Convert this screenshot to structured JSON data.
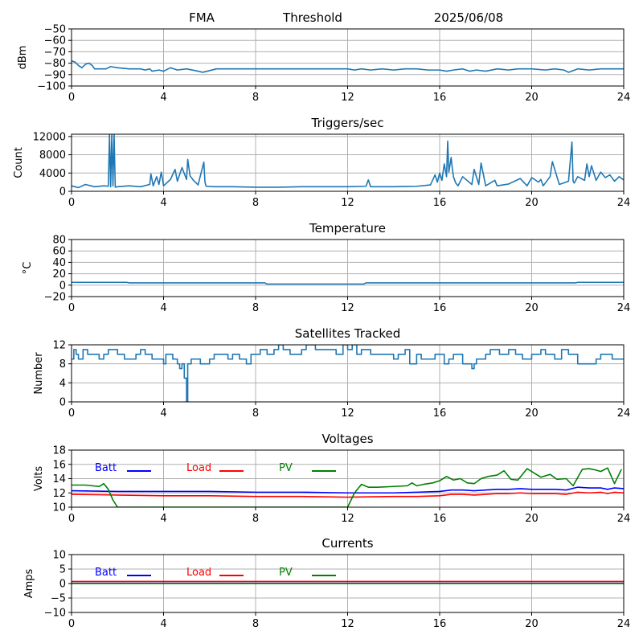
{
  "header": {
    "station": "FMA",
    "mode": "Threshold",
    "date": "2025/06/08"
  },
  "colors": {
    "series": "#1f77b4",
    "batt": "#0000ff",
    "load": "#ff0000",
    "pv": "#008000",
    "grid": "#b0b0b0"
  },
  "chart_data": [
    {
      "type": "line",
      "title": "",
      "ylabel": "dBm",
      "xlim": [
        0,
        24
      ],
      "ylim": [
        -100,
        -50
      ],
      "xticks": [
        0,
        4,
        8,
        12,
        16,
        20,
        24
      ],
      "yticks": [
        -100,
        -90,
        -80,
        -70,
        -60,
        -50
      ],
      "ytick_labels": [
        "−100",
        "−90",
        "−80",
        "−70",
        "−60",
        "−50"
      ],
      "grid": true,
      "series": [
        {
          "name": "",
          "color": "#1f77b4",
          "x": [
            0,
            0.15,
            0.3,
            0.45,
            0.6,
            0.75,
            0.9,
            1.0,
            1.5,
            1.7,
            2.0,
            2.5,
            3.0,
            3.2,
            3.4,
            3.5,
            3.8,
            4.0,
            4.3,
            4.6,
            5.0,
            5.5,
            5.7,
            5.9,
            6.3,
            7.0,
            8.0,
            9.0,
            10.0,
            11.0,
            12.0,
            12.3,
            12.6,
            13.0,
            13.5,
            14.0,
            14.5,
            15.0,
            15.5,
            16.0,
            16.3,
            16.6,
            17.0,
            17.3,
            17.6,
            18.0,
            18.5,
            19.0,
            19.4,
            20.0,
            20.6,
            21.0,
            21.4,
            21.6,
            22.0,
            22.5,
            23.0,
            23.5,
            24.0
          ],
          "y": [
            -78,
            -79,
            -82,
            -84,
            -81,
            -80,
            -82,
            -85,
            -85,
            -83,
            -84,
            -85,
            -85,
            -86,
            -85,
            -87,
            -86,
            -87,
            -84,
            -86,
            -85,
            -87,
            -88,
            -87,
            -85,
            -85,
            -85,
            -85,
            -85,
            -85,
            -85,
            -86,
            -85,
            -86,
            -85,
            -86,
            -85,
            -85,
            -86,
            -86,
            -87,
            -86,
            -85,
            -87,
            -86,
            -87,
            -85,
            -86,
            -85,
            -85,
            -86,
            -85,
            -86,
            -88,
            -85,
            -86,
            -85,
            -85,
            -85
          ]
        }
      ]
    },
    {
      "type": "line",
      "title": "Triggers/sec",
      "ylabel": "Count",
      "xlim": [
        0,
        24
      ],
      "ylim": [
        0,
        12500
      ],
      "xticks": [
        0,
        4,
        8,
        12,
        16,
        20,
        24
      ],
      "yticks": [
        0,
        4000,
        8000,
        12000
      ],
      "ytick_labels": [
        "0",
        "4000",
        "8000",
        "12000"
      ],
      "grid": true,
      "series": [
        {
          "name": "",
          "color": "#1f77b4",
          "x": [
            0,
            0.3,
            0.6,
            1.0,
            1.4,
            1.6,
            1.65,
            1.7,
            1.75,
            1.8,
            1.85,
            1.9,
            2.0,
            2.5,
            3.0,
            3.4,
            3.45,
            3.55,
            3.7,
            3.8,
            3.9,
            4.0,
            4.3,
            4.5,
            4.6,
            4.8,
            5.0,
            5.05,
            5.15,
            5.3,
            5.5,
            5.75,
            5.8,
            5.85,
            6.2,
            7.0,
            8.0,
            9.0,
            10.0,
            11.0,
            12.0,
            12.8,
            12.9,
            13.0,
            14.0,
            15.0,
            15.6,
            15.8,
            15.9,
            16.0,
            16.1,
            16.2,
            16.3,
            16.35,
            16.4,
            16.5,
            16.55,
            16.6,
            16.7,
            16.8,
            17.0,
            17.4,
            17.5,
            17.7,
            17.8,
            18.0,
            18.4,
            18.5,
            19.0,
            19.5,
            19.8,
            20.0,
            20.3,
            20.4,
            20.5,
            20.8,
            20.9,
            21.2,
            21.6,
            21.75,
            21.8,
            21.85,
            22.0,
            22.3,
            22.4,
            22.5,
            22.6,
            22.8,
            23.0,
            23.2,
            23.4,
            23.6,
            23.8,
            24.0
          ],
          "y": [
            1200,
            800,
            1500,
            1000,
            1200,
            1100,
            12500,
            1000,
            12500,
            1200,
            12500,
            900,
            1000,
            1200,
            1000,
            1500,
            3800,
            1200,
            3200,
            1500,
            4200,
            1200,
            2600,
            4800,
            2200,
            5200,
            2600,
            7000,
            3400,
            2400,
            1400,
            6400,
            2000,
            1100,
            1000,
            1000,
            900,
            900,
            1000,
            1000,
            1000,
            1100,
            2500,
            1000,
            1000,
            1100,
            1400,
            3600,
            2000,
            4000,
            2400,
            6000,
            3200,
            11000,
            4200,
            7400,
            5000,
            3200,
            1800,
            1200,
            3200,
            1500,
            4800,
            1500,
            6200,
            1200,
            2400,
            1200,
            1600,
            2800,
            1200,
            3000,
            2000,
            2600,
            1200,
            3200,
            6500,
            1500,
            2200,
            10800,
            2200,
            1800,
            3200,
            2400,
            6000,
            3200,
            5600,
            2400,
            4200,
            3000,
            3600,
            2200,
            3200,
            2500
          ]
        }
      ]
    },
    {
      "type": "line",
      "title": "Temperature",
      "ylabel": "°C",
      "xlim": [
        0,
        24
      ],
      "ylim": [
        -20,
        80
      ],
      "xticks": [
        0,
        4,
        8,
        12,
        16,
        20,
        24
      ],
      "yticks": [
        -20,
        0,
        20,
        40,
        60,
        80
      ],
      "ytick_labels": [
        "−20",
        "0",
        "20",
        "40",
        "60",
        "80"
      ],
      "grid": true,
      "series": [
        {
          "name": "",
          "color": "#1f77b4",
          "x": [
            0,
            2.4,
            2.5,
            8.4,
            8.5,
            12.7,
            12.8,
            21.9,
            22.0,
            24.0
          ],
          "y": [
            5,
            5,
            4,
            4,
            2,
            2,
            4,
            4,
            5,
            5
          ]
        }
      ]
    },
    {
      "type": "line",
      "title": "Satellites Tracked",
      "ylabel": "Number",
      "xlim": [
        0,
        24
      ],
      "ylim": [
        0,
        12
      ],
      "xticks": [
        0,
        4,
        8,
        12,
        16,
        20,
        24
      ],
      "yticks": [
        0,
        4,
        8,
        12
      ],
      "ytick_labels": [
        "0",
        "4",
        "8",
        "12"
      ],
      "grid": true,
      "series": [
        {
          "name": "",
          "color": "#1f77b4",
          "step": true,
          "x": [
            0,
            0.1,
            0.2,
            0.3,
            0.5,
            0.7,
            1.0,
            1.2,
            1.4,
            1.6,
            2.0,
            2.3,
            2.8,
            3.0,
            3.2,
            3.5,
            4.0,
            4.1,
            4.4,
            4.6,
            4.7,
            4.8,
            4.9,
            5.0,
            5.05,
            5.2,
            5.6,
            6.0,
            6.2,
            6.8,
            7.0,
            7.3,
            7.6,
            7.8,
            8.2,
            8.5,
            8.8,
            9.0,
            9.2,
            9.5,
            10.0,
            10.2,
            10.6,
            11.0,
            11.5,
            11.8,
            12.0,
            12.2,
            12.4,
            12.6,
            13.0,
            13.5,
            14.0,
            14.2,
            14.5,
            14.7,
            15.0,
            15.2,
            15.5,
            15.8,
            16.2,
            16.4,
            16.6,
            17.0,
            17.4,
            17.5,
            17.6,
            18.0,
            18.2,
            18.6,
            19.0,
            19.3,
            19.6,
            20.0,
            20.4,
            20.6,
            21.0,
            21.3,
            21.6,
            22.0,
            22.4,
            22.8,
            23.0,
            23.5,
            24.0
          ],
          "y": [
            9,
            11,
            10,
            9,
            11,
            10,
            10,
            9,
            10,
            11,
            10,
            9,
            10,
            11,
            10,
            9,
            8,
            10,
            9,
            8,
            7,
            8,
            5,
            0,
            8,
            9,
            8,
            9,
            10,
            9,
            10,
            9,
            8,
            10,
            11,
            10,
            11,
            12,
            11,
            10,
            11,
            12,
            11,
            11,
            10,
            12,
            11,
            12,
            10,
            11,
            10,
            10,
            9,
            10,
            11,
            8,
            10,
            9,
            9,
            10,
            8,
            9,
            10,
            8,
            7,
            8,
            9,
            10,
            11,
            10,
            11,
            10,
            9,
            10,
            11,
            10,
            9,
            11,
            10,
            8,
            8,
            9,
            10,
            9,
            9
          ]
        }
      ]
    },
    {
      "type": "line",
      "title": "Voltages",
      "ylabel": "Volts",
      "xlim": [
        0,
        24
      ],
      "ylim": [
        10,
        18
      ],
      "xticks": [
        0,
        4,
        8,
        12,
        16,
        20,
        24
      ],
      "yticks": [
        10,
        12,
        14,
        16,
        18
      ],
      "ytick_labels": [
        "10",
        "12",
        "14",
        "16",
        "18"
      ],
      "grid": true,
      "legend": [
        "Batt",
        "Load",
        "PV"
      ],
      "series": [
        {
          "name": "Batt",
          "color": "#0000ff",
          "x": [
            0,
            2,
            4,
            6,
            8,
            10,
            12,
            14,
            15,
            16,
            16.5,
            17,
            17.5,
            18,
            18.5,
            19,
            19.5,
            20,
            20.5,
            21,
            21.5,
            22,
            22.5,
            23,
            23.3,
            23.6,
            24
          ],
          "y": [
            12.3,
            12.2,
            12.2,
            12.2,
            12.1,
            12.1,
            12.0,
            12.0,
            12.1,
            12.2,
            12.4,
            12.4,
            12.3,
            12.4,
            12.5,
            12.5,
            12.6,
            12.5,
            12.5,
            12.5,
            12.4,
            12.8,
            12.7,
            12.7,
            12.5,
            12.7,
            12.6
          ]
        },
        {
          "name": "Load",
          "color": "#ff0000",
          "x": [
            0,
            2,
            4,
            6,
            8,
            10,
            12,
            14,
            15,
            16,
            16.5,
            17,
            17.5,
            18,
            18.5,
            19,
            19.5,
            20,
            20.5,
            21,
            21.5,
            22,
            22.5,
            23,
            23.3,
            23.6,
            24
          ],
          "y": [
            11.8,
            11.7,
            11.6,
            11.6,
            11.5,
            11.5,
            11.4,
            11.5,
            11.5,
            11.6,
            11.8,
            11.8,
            11.7,
            11.8,
            11.9,
            11.9,
            12.0,
            11.9,
            11.9,
            11.9,
            11.8,
            12.1,
            12.0,
            12.1,
            11.9,
            12.1,
            12.0
          ]
        },
        {
          "name": "PV",
          "color": "#008000",
          "x": [
            0,
            0.6,
            1.2,
            1.4,
            1.6,
            1.8,
            2.0,
            10.0,
            12.0,
            12.3,
            12.6,
            12.9,
            13.3,
            14.0,
            14.6,
            14.8,
            15.0,
            15.3,
            15.7,
            16.0,
            16.3,
            16.6,
            16.9,
            17.2,
            17.5,
            17.8,
            18.1,
            18.5,
            18.8,
            19.1,
            19.4,
            19.8,
            20.1,
            20.4,
            20.8,
            21.1,
            21.5,
            21.8,
            22.2,
            22.5,
            22.8,
            23.0,
            23.3,
            23.6,
            23.9
          ],
          "y": [
            13.1,
            13.1,
            12.9,
            13.3,
            12.5,
            11.0,
            10.0,
            10.0,
            10.0,
            12.0,
            13.2,
            12.8,
            12.8,
            12.9,
            13.0,
            13.4,
            13.0,
            13.2,
            13.4,
            13.7,
            14.3,
            13.8,
            14.0,
            13.4,
            13.3,
            14.0,
            14.3,
            14.5,
            15.1,
            13.9,
            13.8,
            15.4,
            14.8,
            14.2,
            14.6,
            13.9,
            14.0,
            13.0,
            15.3,
            15.4,
            15.2,
            15.0,
            15.5,
            13.3,
            15.3
          ]
        }
      ]
    },
    {
      "type": "line",
      "title": "Currents",
      "ylabel": "Amps",
      "xlim": [
        0,
        24
      ],
      "ylim": [
        -10,
        10
      ],
      "xticks": [
        0,
        4,
        8,
        12,
        16,
        20,
        24
      ],
      "yticks": [
        -10,
        -5,
        0,
        5,
        10
      ],
      "ytick_labels": [
        "−10",
        "−5",
        "0",
        "5",
        "10"
      ],
      "grid": true,
      "legend": [
        "Batt",
        "Load",
        "PV"
      ],
      "series": [
        {
          "name": "Batt",
          "color": "#0000ff",
          "x": [
            0,
            24
          ],
          "y": [
            0.1,
            0.1
          ]
        },
        {
          "name": "Load",
          "color": "#ff0000",
          "x": [
            0,
            24
          ],
          "y": [
            0.7,
            0.7
          ]
        },
        {
          "name": "PV",
          "color": "#008000",
          "x": [
            0,
            24
          ],
          "y": [
            0.0,
            0.0
          ]
        }
      ]
    }
  ]
}
